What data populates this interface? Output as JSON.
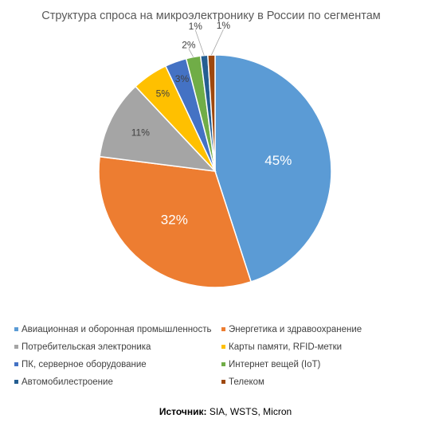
{
  "chart_data": {
    "type": "pie",
    "title": "Структура спроса на микроэлектронику в России по сегментам",
    "categories": [
      "Авиационная и оборонная промышленность",
      "Энергетика и здравоохранение",
      "Потребительская электроника",
      "Карты памяти, RFID-метки",
      "ПК, серверное оборудование",
      "Интернет вещей (IoT)",
      "Автомобилестроение",
      "Телеком"
    ],
    "values": [
      45,
      32,
      11,
      5,
      3,
      2,
      1,
      1
    ],
    "labels": [
      "45%",
      "32%",
      "11%",
      "5%",
      "3%",
      "2%",
      "1%",
      "1%"
    ],
    "colors": [
      "#5B9BD5",
      "#ED7D31",
      "#A5A5A5",
      "#FFC000",
      "#4472C4",
      "#70AD47",
      "#255E91",
      "#9E480E"
    ],
    "legend_position": "bottom"
  },
  "source": {
    "label": "Источник:",
    "text": " SIA, WSTS, Micron"
  }
}
